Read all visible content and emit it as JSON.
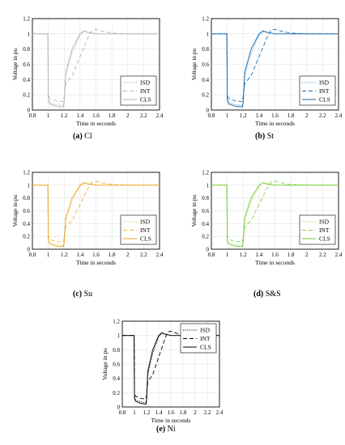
{
  "charts": [
    {
      "id": "a",
      "caption_letter": "(a)",
      "caption_name": "Cl",
      "colors": {
        "ISD": "#b5b5b5",
        "INT": "#b5b5b5",
        "CLS": "#b5b5b5"
      },
      "legend_position": "lower-right"
    },
    {
      "id": "b",
      "caption_letter": "(b)",
      "caption_name": "St",
      "colors": {
        "ISD": "#4f9fd6",
        "INT": "#1a6fb8",
        "CLS": "#1565a8"
      },
      "legend_position": "lower-right"
    },
    {
      "id": "c",
      "caption_letter": "(c)",
      "caption_name": "Su",
      "colors": {
        "ISD": "#f2c066",
        "INT": "#f3b03c",
        "CLS": "#eda41a"
      },
      "legend_position": "lower-right"
    },
    {
      "id": "d",
      "caption_letter": "(d)",
      "caption_name": "S&S",
      "colors": {
        "ISD": "#a6e07a",
        "INT": "#86d64a",
        "CLS": "#6fcc2c"
      },
      "legend_position": "lower-right"
    },
    {
      "id": "e",
      "caption_letter": "(e)",
      "caption_name": "Ni",
      "colors": {
        "ISD": "#000000",
        "INT": "#000000",
        "CLS": "#000000"
      },
      "legend_position": "upper-right"
    }
  ],
  "chart_data": {
    "type": "line",
    "xlabel": "Time in seconds",
    "ylabel": "Voltage in pu",
    "xlim": [
      0.8,
      2.4
    ],
    "ylim": [
      0,
      1.2
    ],
    "xticks": [
      "0.8",
      "1",
      "1.2",
      "1.4",
      "1.6",
      "1.8",
      "2",
      "2.2",
      "2.4"
    ],
    "yticks": [
      "0",
      "0.2",
      "0.4",
      "0.6",
      "0.8",
      "1",
      "1.2"
    ],
    "grid": true,
    "series": [
      {
        "name": "ISD",
        "style": "dotted",
        "x": [
          0.8,
          0.995,
          1.0,
          1.02,
          1.1,
          1.19,
          1.2,
          1.22,
          1.3,
          1.4,
          1.45,
          1.5,
          1.6,
          1.8,
          2.0,
          2.4
        ],
        "y": [
          1.0,
          1.0,
          0.15,
          0.1,
          0.07,
          0.06,
          0.12,
          0.45,
          0.75,
          0.98,
          1.03,
          1.02,
          1.0,
          1.0,
          1.0,
          1.0
        ]
      },
      {
        "name": "INT",
        "style": "dashed",
        "x": [
          0.8,
          0.995,
          1.0,
          1.02,
          1.1,
          1.19,
          1.2,
          1.22,
          1.3,
          1.4,
          1.5,
          1.55,
          1.6,
          1.7,
          1.8,
          2.0,
          2.4
        ],
        "y": [
          1.0,
          1.0,
          0.2,
          0.15,
          0.12,
          0.11,
          0.18,
          0.35,
          0.45,
          0.7,
          0.95,
          1.05,
          1.06,
          1.03,
          1.01,
          1.0,
          1.0
        ]
      },
      {
        "name": "CLS",
        "style": "solid",
        "x": [
          0.8,
          0.995,
          1.0,
          1.02,
          1.1,
          1.19,
          1.2,
          1.22,
          1.3,
          1.4,
          1.45,
          1.5,
          1.6,
          1.8,
          2.0,
          2.4
        ],
        "y": [
          1.0,
          1.0,
          0.13,
          0.08,
          0.05,
          0.04,
          0.1,
          0.5,
          0.8,
          1.0,
          1.04,
          1.02,
          1.0,
          1.0,
          1.0,
          1.0
        ]
      }
    ]
  }
}
